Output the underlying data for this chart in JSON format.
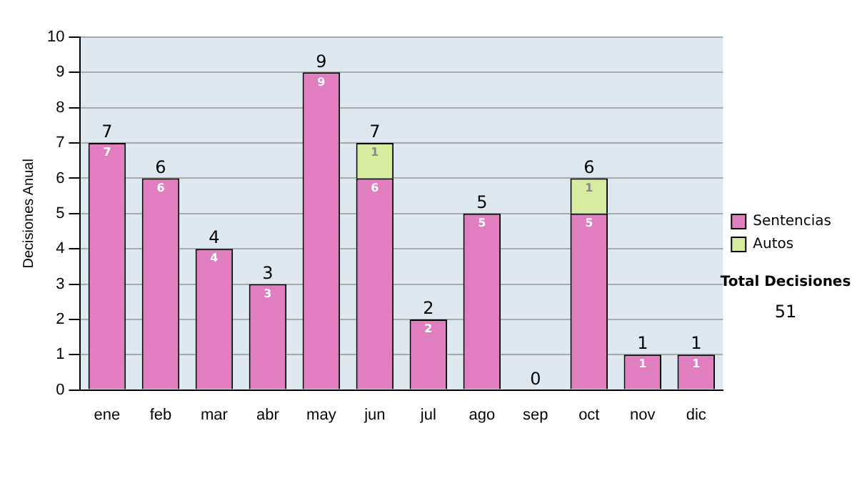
{
  "chart_data": {
    "type": "bar",
    "stacked": true,
    "ylabel": "Decisiones Anual",
    "categories": [
      "ene",
      "feb",
      "mar",
      "abr",
      "may",
      "jun",
      "jul",
      "ago",
      "sep",
      "oct",
      "nov",
      "dic"
    ],
    "series": [
      {
        "name": "Sentencias",
        "color": "#e07ec0",
        "values": [
          7,
          6,
          4,
          3,
          9,
          6,
          2,
          5,
          0,
          5,
          1,
          1
        ],
        "value_labels": [
          "7",
          "6",
          "4",
          "3",
          "9",
          "6",
          "2",
          "5",
          null,
          "5",
          "1",
          "1"
        ]
      },
      {
        "name": "Autos",
        "color": "#d8eca0",
        "values": [
          0,
          0,
          0,
          0,
          0,
          1,
          0,
          0,
          0,
          1,
          0,
          0
        ],
        "value_labels": [
          null,
          null,
          null,
          null,
          null,
          "1",
          null,
          null,
          null,
          "1",
          null,
          null
        ]
      }
    ],
    "totals": [
      "7",
      "6",
      "4",
      "3",
      "9",
      "7",
      "2",
      "5",
      "0",
      "6",
      "1",
      "1"
    ],
    "ylim": [
      0,
      10
    ],
    "yticks": [
      0,
      1,
      2,
      3,
      4,
      5,
      6,
      7,
      8,
      9,
      10
    ],
    "grid": "y",
    "legend": "right",
    "annotations": [
      "Total Decisiones",
      "51"
    ]
  }
}
